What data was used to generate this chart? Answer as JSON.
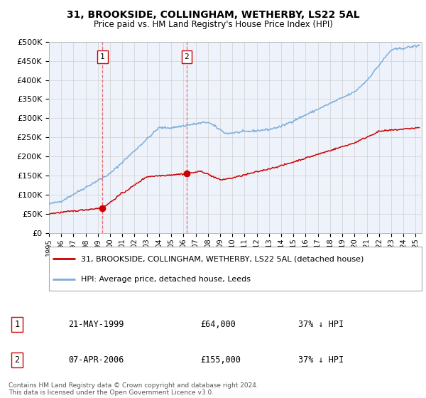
{
  "title": "31, BROOKSIDE, COLLINGHAM, WETHERBY, LS22 5AL",
  "subtitle": "Price paid vs. HM Land Registry's House Price Index (HPI)",
  "ylim": [
    0,
    500000
  ],
  "yticks": [
    0,
    50000,
    100000,
    150000,
    200000,
    250000,
    300000,
    350000,
    400000,
    450000,
    500000
  ],
  "ytick_labels": [
    "£0",
    "£50K",
    "£100K",
    "£150K",
    "£200K",
    "£250K",
    "£300K",
    "£350K",
    "£400K",
    "£450K",
    "£500K"
  ],
  "xlim_start": 1995.0,
  "xlim_end": 2025.5,
  "property_color": "#cc0000",
  "hpi_color": "#7aaddb",
  "vline1_x": 1999.38,
  "vline2_x": 2006.27,
  "vline_color": "#dd4444",
  "legend_line1": "31, BROOKSIDE, COLLINGHAM, WETHERBY, LS22 5AL (detached house)",
  "legend_line2": "HPI: Average price, detached house, Leeds",
  "annotation1_num": "1",
  "annotation1_date": "21-MAY-1999",
  "annotation1_price": "£64,000",
  "annotation1_hpi": "37% ↓ HPI",
  "annotation2_num": "2",
  "annotation2_date": "07-APR-2006",
  "annotation2_price": "£155,000",
  "annotation2_hpi": "37% ↓ HPI",
  "footer": "Contains HM Land Registry data © Crown copyright and database right 2024.\nThis data is licensed under the Open Government Licence v3.0.",
  "bg_color": "#ffffff",
  "plot_bg_color": "#eef2fa",
  "grid_color": "#d0d0d0",
  "box_edge_color": "#cc0000",
  "marker1_price": 64000,
  "marker2_price": 155000
}
